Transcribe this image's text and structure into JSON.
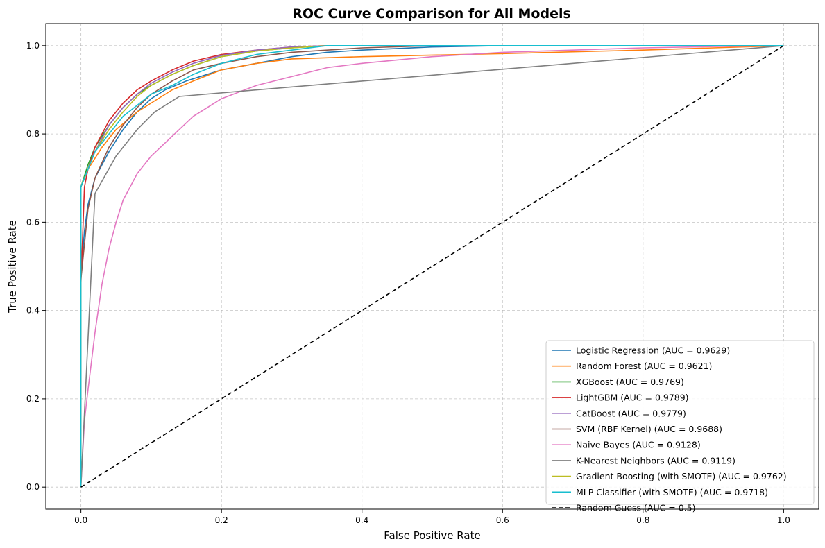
{
  "chart_data": {
    "type": "line",
    "title": "ROC Curve Comparison for All Models",
    "xlabel": "False Positive Rate",
    "ylabel": "True Positive Rate",
    "xlim": [
      -0.05,
      1.05
    ],
    "ylim": [
      -0.05,
      1.05
    ],
    "xticks": [
      0.0,
      0.2,
      0.4,
      0.6,
      0.8,
      1.0
    ],
    "yticks": [
      0.0,
      0.2,
      0.4,
      0.6,
      0.8,
      1.0
    ],
    "xtick_labels": [
      "0.0",
      "0.2",
      "0.4",
      "0.6",
      "0.8",
      "1.0"
    ],
    "ytick_labels": [
      "0.0",
      "0.2",
      "0.4",
      "0.6",
      "0.8",
      "1.0"
    ],
    "grid": true,
    "legend_position": "lower-right",
    "series": [
      {
        "name": "Logistic Regression (AUC = 0.9629)",
        "color": "#1f77b4",
        "dashed": false,
        "x": [
          0,
          0,
          0.005,
          0.01,
          0.02,
          0.04,
          0.06,
          0.08,
          0.1,
          0.12,
          0.15,
          0.2,
          0.25,
          0.3,
          0.35,
          0.4,
          0.5,
          0.6,
          1.0
        ],
        "y": [
          0,
          0.48,
          0.58,
          0.64,
          0.7,
          0.76,
          0.81,
          0.85,
          0.88,
          0.9,
          0.92,
          0.945,
          0.96,
          0.975,
          0.985,
          0.99,
          0.997,
          1.0,
          1.0
        ]
      },
      {
        "name": "Random Forest (AUC = 0.9621)",
        "color": "#ff7f0e",
        "dashed": false,
        "x": [
          0,
          0,
          0.01,
          0.03,
          0.05,
          0.08,
          0.1,
          0.13,
          0.16,
          0.2,
          0.25,
          0.3,
          0.4,
          0.6,
          0.8,
          1.0
        ],
        "y": [
          0,
          0.68,
          0.72,
          0.77,
          0.81,
          0.85,
          0.87,
          0.9,
          0.92,
          0.945,
          0.96,
          0.97,
          0.975,
          0.982,
          0.99,
          1.0
        ]
      },
      {
        "name": "XGBoost (AUC = 0.9769)",
        "color": "#2ca02c",
        "dashed": false,
        "x": [
          0,
          0,
          0.01,
          0.02,
          0.04,
          0.06,
          0.08,
          0.1,
          0.13,
          0.16,
          0.2,
          0.25,
          0.3,
          0.35,
          1.0
        ],
        "y": [
          0,
          0.68,
          0.73,
          0.77,
          0.82,
          0.86,
          0.89,
          0.91,
          0.935,
          0.955,
          0.975,
          0.988,
          0.995,
          1.0,
          1.0
        ]
      },
      {
        "name": "LightGBM (AUC = 0.9789)",
        "color": "#d62728",
        "dashed": false,
        "x": [
          0,
          0,
          0.005,
          0.01,
          0.02,
          0.04,
          0.06,
          0.08,
          0.1,
          0.13,
          0.16,
          0.2,
          0.25,
          0.3,
          0.35,
          1.0
        ],
        "y": [
          0,
          0.46,
          0.68,
          0.72,
          0.77,
          0.83,
          0.87,
          0.9,
          0.92,
          0.945,
          0.965,
          0.98,
          0.99,
          0.997,
          1.0,
          1.0
        ]
      },
      {
        "name": "CatBoost (AUC = 0.9779)",
        "color": "#9467bd",
        "dashed": false,
        "x": [
          0,
          0,
          0.01,
          0.02,
          0.04,
          0.06,
          0.08,
          0.1,
          0.13,
          0.16,
          0.2,
          0.25,
          0.3,
          0.35,
          1.0
        ],
        "y": [
          0,
          0.68,
          0.72,
          0.76,
          0.82,
          0.86,
          0.89,
          0.915,
          0.94,
          0.96,
          0.978,
          0.99,
          0.997,
          1.0,
          1.0
        ]
      },
      {
        "name": "SVM (RBF Kernel) (AUC = 0.9688)",
        "color": "#8c564b",
        "dashed": false,
        "x": [
          0,
          0,
          0.005,
          0.01,
          0.02,
          0.04,
          0.06,
          0.08,
          0.1,
          0.13,
          0.16,
          0.2,
          0.25,
          0.3,
          0.4,
          0.5,
          1.0
        ],
        "y": [
          0,
          0.47,
          0.55,
          0.63,
          0.7,
          0.77,
          0.82,
          0.86,
          0.89,
          0.92,
          0.945,
          0.96,
          0.975,
          0.985,
          0.995,
          1.0,
          1.0
        ]
      },
      {
        "name": "Naive Bayes (AUC = 0.9128)",
        "color": "#e377c2",
        "dashed": false,
        "x": [
          0,
          0.005,
          0.01,
          0.02,
          0.03,
          0.04,
          0.05,
          0.06,
          0.08,
          0.1,
          0.12,
          0.14,
          0.16,
          0.18,
          0.2,
          0.25,
          0.3,
          0.35,
          0.4,
          0.5,
          0.6,
          0.7,
          0.8,
          0.9,
          1.0
        ],
        "y": [
          0,
          0.15,
          0.22,
          0.35,
          0.46,
          0.54,
          0.6,
          0.65,
          0.71,
          0.75,
          0.78,
          0.81,
          0.84,
          0.86,
          0.88,
          0.91,
          0.93,
          0.95,
          0.96,
          0.975,
          0.985,
          0.99,
          0.995,
          0.998,
          1.0
        ]
      },
      {
        "name": "K-Nearest Neighbors (AUC = 0.9119)",
        "color": "#7f7f7f",
        "dashed": false,
        "x": [
          0,
          0.02,
          0.05,
          0.08,
          0.105,
          0.14,
          1.0
        ],
        "y": [
          0,
          0.665,
          0.75,
          0.81,
          0.85,
          0.885,
          1.0
        ]
      },
      {
        "name": "Gradient Boosting (with SMOTE) (AUC = 0.9762)",
        "color": "#bcbd22",
        "dashed": false,
        "x": [
          0,
          0,
          0.01,
          0.02,
          0.04,
          0.06,
          0.08,
          0.1,
          0.13,
          0.16,
          0.2,
          0.25,
          0.3,
          0.35,
          1.0
        ],
        "y": [
          0,
          0.68,
          0.72,
          0.76,
          0.81,
          0.85,
          0.885,
          0.91,
          0.935,
          0.955,
          0.975,
          0.988,
          0.995,
          1.0,
          1.0
        ]
      },
      {
        "name": "MLP Classifier (with SMOTE) (AUC = 0.9718)",
        "color": "#17becf",
        "dashed": false,
        "x": [
          0,
          0,
          0.01,
          0.02,
          0.04,
          0.06,
          0.08,
          0.1,
          0.13,
          0.16,
          0.2,
          0.25,
          0.3,
          0.35,
          1.0
        ],
        "y": [
          0,
          0.68,
          0.72,
          0.76,
          0.8,
          0.84,
          0.865,
          0.89,
          0.91,
          0.935,
          0.96,
          0.98,
          0.99,
          1.0,
          1.0
        ]
      },
      {
        "name": "Random Guess (AUC = 0.5)",
        "color": "#000000",
        "dashed": true,
        "x": [
          0,
          1
        ],
        "y": [
          0,
          1
        ]
      }
    ]
  }
}
